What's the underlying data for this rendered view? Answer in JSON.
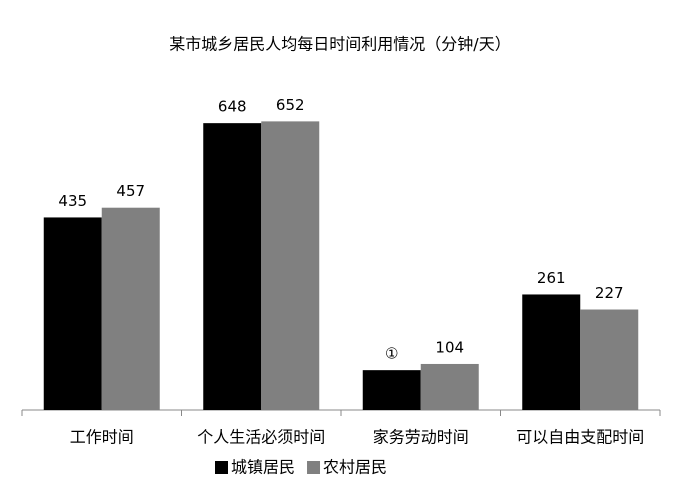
{
  "chart_data": {
    "type": "bar",
    "title": "某市城乡居民人均每日时间利用情况（分钟/天）",
    "categories": [
      "工作时间",
      "个人生活必须时间",
      "家务劳动时间",
      "可以自由支配时间"
    ],
    "series": [
      {
        "name": "城镇居民",
        "color": "#000000",
        "values": [
          435,
          648,
          90,
          261
        ],
        "value_labels": [
          null,
          null,
          "①",
          null
        ]
      },
      {
        "name": "农村居民",
        "color": "#808080",
        "values": [
          457,
          652,
          104,
          227
        ]
      }
    ],
    "ylim": [
      0,
      750
    ],
    "legend": "bottom"
  }
}
